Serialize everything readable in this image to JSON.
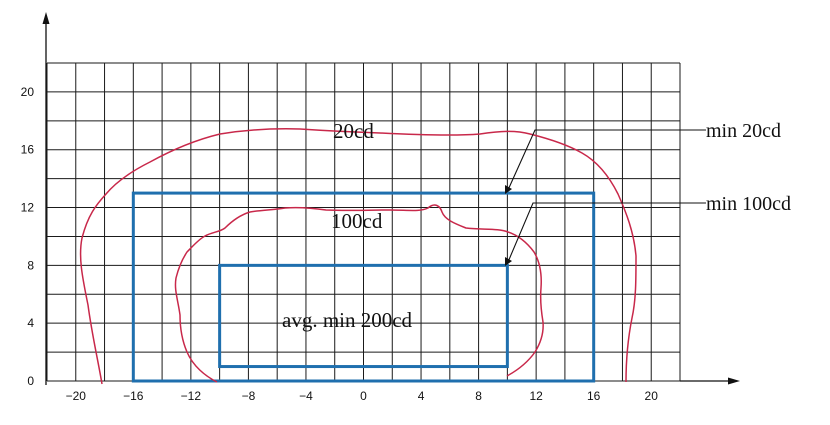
{
  "diagram": {
    "axes": {
      "x_ticks": [
        "−20",
        "−16",
        "−12",
        "−8",
        "−4",
        "0",
        "4",
        "8",
        "12",
        "16",
        "20"
      ],
      "y_ticks": [
        "0",
        "4",
        "8",
        "12",
        "16",
        "20"
      ],
      "x_range": [
        -22,
        22
      ],
      "y_range": [
        0,
        22
      ],
      "grid_step": 2,
      "grid": true
    },
    "colors": {
      "grid": "#1a1a1a",
      "boxes": "#1f6fae",
      "contours": "#c8284a",
      "leader": "#111111"
    },
    "zones": {
      "outer_box": {
        "x": [
          -16,
          16
        ],
        "y": [
          0,
          13
        ]
      },
      "inner_box": {
        "x": [
          -10,
          10
        ],
        "y": [
          1,
          8
        ]
      }
    },
    "labels": {
      "contour_20": "20cd",
      "contour_100": "100cd",
      "center_avg": "avg. min 200cd",
      "callout_outer": "min 20cd",
      "callout_inner": "min 100cd"
    }
  }
}
